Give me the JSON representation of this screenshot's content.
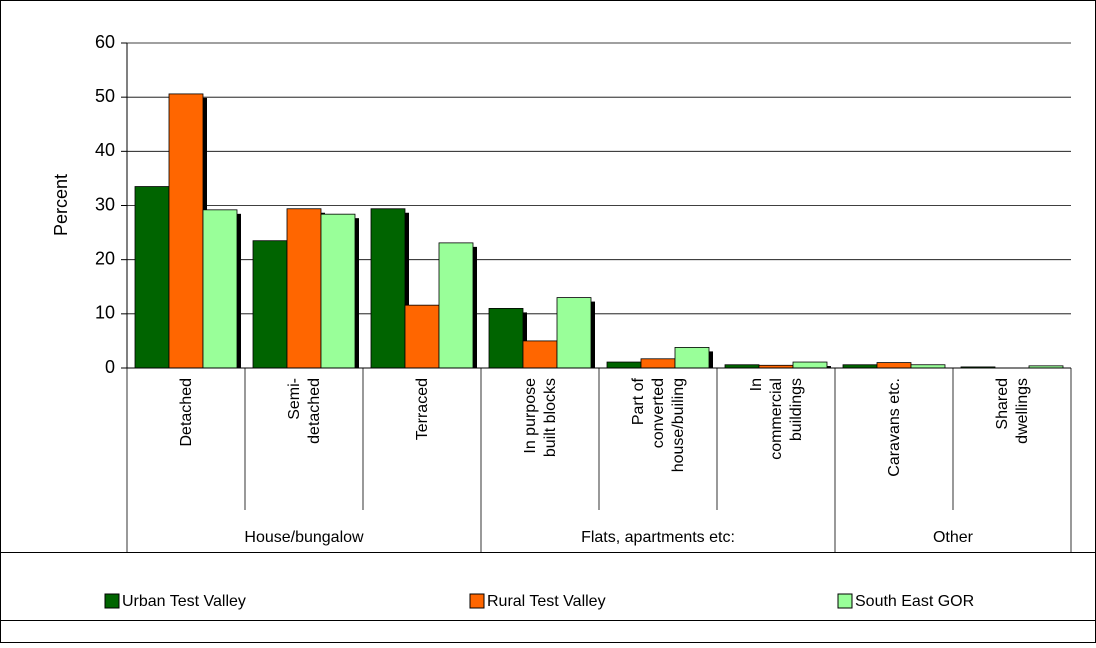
{
  "chart_data": {
    "type": "bar",
    "ylabel": "Percent",
    "groups": [
      {
        "name": "House/bungalow",
        "categories": [
          "Detached",
          "Semi-\ndetached",
          "Terraced"
        ]
      },
      {
        "name": "Flats, apartments etc:",
        "categories": [
          "In purpose\nbuilt blocks",
          "Part of\nconverted\nhouse/builing",
          "In\ncommercial\nbuildings"
        ]
      },
      {
        "name": "Other",
        "categories": [
          "Caravans etc.",
          "Shared\ndwellings"
        ]
      }
    ],
    "series": [
      {
        "name": "Urban Test Valley",
        "color": "#006400",
        "values": [
          33.5,
          23.5,
          29.4,
          11,
          1.1,
          0.6,
          0.6,
          0.2
        ]
      },
      {
        "name": "Rural Test Valley",
        "color": "#ff6600",
        "values": [
          50.6,
          29.4,
          11.6,
          5,
          1.7,
          0.5,
          1.0,
          0.0
        ]
      },
      {
        "name": "South East GOR",
        "color": "#99ff99",
        "values": [
          29.2,
          28.4,
          23.1,
          13,
          3.8,
          1.1,
          0.6,
          0.4
        ]
      }
    ],
    "ylim": [
      0,
      60
    ],
    "yticks": [
      0,
      10,
      20,
      30,
      40,
      50,
      60
    ],
    "grid": true,
    "legend": "bottom"
  }
}
